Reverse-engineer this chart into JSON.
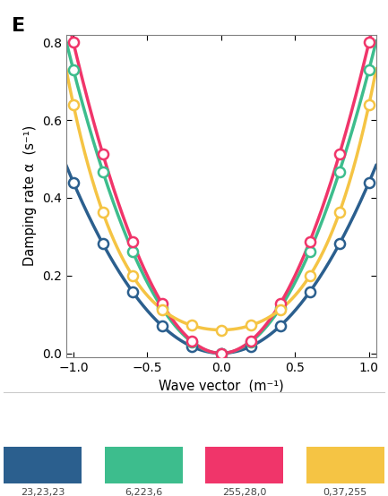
{
  "colors": {
    "navy": "#2b5f8e",
    "teal": "#3dbd8d",
    "pink": "#f0356a",
    "yellow": "#f5c444"
  },
  "color_labels": [
    "23,23,23",
    "6,223,6",
    "255,28,0",
    "0,37,255"
  ],
  "xlim": [
    -1.05,
    1.05
  ],
  "ylim": [
    -0.01,
    0.82
  ],
  "xlabel": "Wave vector  (m⁻¹)",
  "ylabel": "Damping rate α  (s⁻¹)",
  "yticks": [
    0,
    0.2,
    0.4,
    0.6,
    0.8
  ],
  "xticks": [
    -1,
    -0.5,
    0,
    0.5,
    1
  ],
  "curve_navy": {
    "a": 0.44,
    "b": 0.0,
    "c": 0.0
  },
  "curve_teal": {
    "a": 0.73,
    "b": 0.0,
    "c": 0.0
  },
  "curve_pink": {
    "a": 0.8,
    "b": 0.0,
    "c": 0.0
  },
  "curve_yellow": {
    "a": 0.0,
    "b": 0.28,
    "c": 0.06,
    "a4": 0.3
  },
  "marker_x_navy": [
    -1.0,
    -0.8,
    -0.6,
    -0.4,
    -0.2,
    0.0,
    0.2,
    0.4,
    0.6,
    0.8,
    1.0
  ],
  "marker_x_teal": [
    -1.0,
    -0.8,
    -0.6,
    -0.4,
    -0.2,
    0.0,
    0.2,
    0.4,
    0.6,
    0.8,
    1.0
  ],
  "marker_x_pink": [
    -1.0,
    -0.8,
    -0.6,
    -0.4,
    -0.2,
    0.0,
    0.2,
    0.4,
    0.6,
    0.8,
    1.0
  ],
  "marker_x_yellow": [
    -1.0,
    -0.8,
    -0.6,
    -0.4,
    -0.2,
    0.0,
    0.2,
    0.4,
    0.6,
    0.8,
    1.0
  ],
  "panel_label": "E",
  "lw": 2.5,
  "ms": 8,
  "mew": 1.8
}
